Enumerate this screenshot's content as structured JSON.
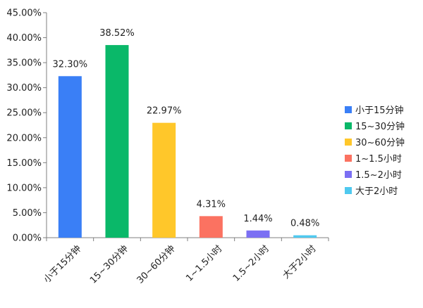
{
  "chart_data": {
    "type": "bar",
    "categories": [
      "小于15分钟",
      "15~30分钟",
      "30~60分钟",
      "1~1.5小时",
      "1.5~2小时",
      "大于2小时"
    ],
    "values": [
      32.3,
      38.52,
      22.97,
      4.31,
      1.44,
      0.48
    ],
    "data_labels": [
      "32.30%",
      "38.52%",
      "22.97%",
      "4.31%",
      "1.44%",
      "0.48%"
    ],
    "colors": [
      "#3a7ff6",
      "#0ab869",
      "#ffc72a",
      "#fb7261",
      "#7b6ff3",
      "#4fc9ef"
    ],
    "y_ticks": [
      "0.00%",
      "5.00%",
      "10.00%",
      "15.00%",
      "20.00%",
      "25.00%",
      "30.00%",
      "35.00%",
      "40.00%",
      "45.00%"
    ],
    "ylim": [
      0,
      45
    ],
    "grid": false,
    "legend_position": "right",
    "title": "",
    "xlabel": "",
    "ylabel": ""
  }
}
